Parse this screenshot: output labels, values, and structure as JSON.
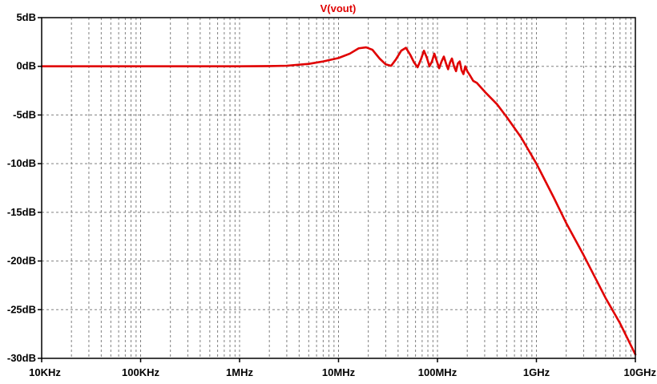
{
  "chart_data": {
    "type": "line",
    "title": "V(vout)",
    "xlabel": "",
    "ylabel": "",
    "x_scale": "log",
    "xlim": [
      "10KHz",
      "10GHz"
    ],
    "xlim_hz": [
      10000,
      10000000000
    ],
    "ylim": [
      -30,
      5
    ],
    "grid": true,
    "x_ticks": [
      {
        "hz": 10000,
        "label": "10KHz"
      },
      {
        "hz": 100000,
        "label": "100KHz"
      },
      {
        "hz": 1000000,
        "label": "1MHz"
      },
      {
        "hz": 10000000,
        "label": "10MHz"
      },
      {
        "hz": 100000000,
        "label": "100MHz"
      },
      {
        "hz": 1000000000,
        "label": "1GHz"
      },
      {
        "hz": 10000000000,
        "label": "10GHz"
      }
    ],
    "y_ticks": [
      {
        "db": 5,
        "label": "5dB"
      },
      {
        "db": 0,
        "label": "0dB"
      },
      {
        "db": -5,
        "label": "-5dB"
      },
      {
        "db": -10,
        "label": "-10dB"
      },
      {
        "db": -15,
        "label": "-15dB"
      },
      {
        "db": -20,
        "label": "-20dB"
      },
      {
        "db": -25,
        "label": "-25dB"
      },
      {
        "db": -30,
        "label": "-30dB"
      }
    ],
    "series": [
      {
        "name": "V(vout)",
        "color": "#e00000",
        "x_hz": [
          10000,
          100000,
          1000000,
          2000000,
          3000000,
          5000000,
          7000000,
          10000000,
          13000000,
          16000000,
          19000000,
          22000000,
          26000000,
          30000000,
          34000000,
          38000000,
          43000000,
          48000000,
          53000000,
          58000000,
          63000000,
          68000000,
          73000000,
          78000000,
          83000000,
          88000000,
          93000000,
          98000000,
          104000000,
          110000000,
          116000000,
          122000000,
          128000000,
          134000000,
          140000000,
          147000000,
          154000000,
          161000000,
          168000000,
          175000000,
          183000000,
          191000000,
          200000000,
          215000000,
          230000000,
          250000000,
          300000000,
          400000000,
          500000000,
          700000000,
          1000000000,
          1500000000,
          2000000000,
          3000000000,
          5000000000,
          7000000000,
          10000000000
        ],
        "y_db": [
          0.0,
          0.0,
          0.0,
          0.02,
          0.06,
          0.25,
          0.5,
          0.85,
          1.3,
          1.85,
          1.95,
          1.7,
          0.8,
          0.2,
          0.05,
          0.7,
          1.6,
          1.9,
          1.2,
          0.4,
          -0.1,
          0.7,
          1.6,
          0.9,
          0.0,
          0.5,
          1.3,
          0.6,
          -0.2,
          0.5,
          1.0,
          0.3,
          -0.3,
          0.4,
          0.8,
          0.0,
          -0.5,
          0.3,
          0.5,
          -0.4,
          -0.8,
          0.0,
          -0.5,
          -1.0,
          -1.5,
          -1.7,
          -2.6,
          -3.9,
          -5.2,
          -7.3,
          -10.0,
          -13.5,
          -16.1,
          -19.4,
          -23.8,
          -26.4,
          -29.6
        ]
      }
    ]
  }
}
